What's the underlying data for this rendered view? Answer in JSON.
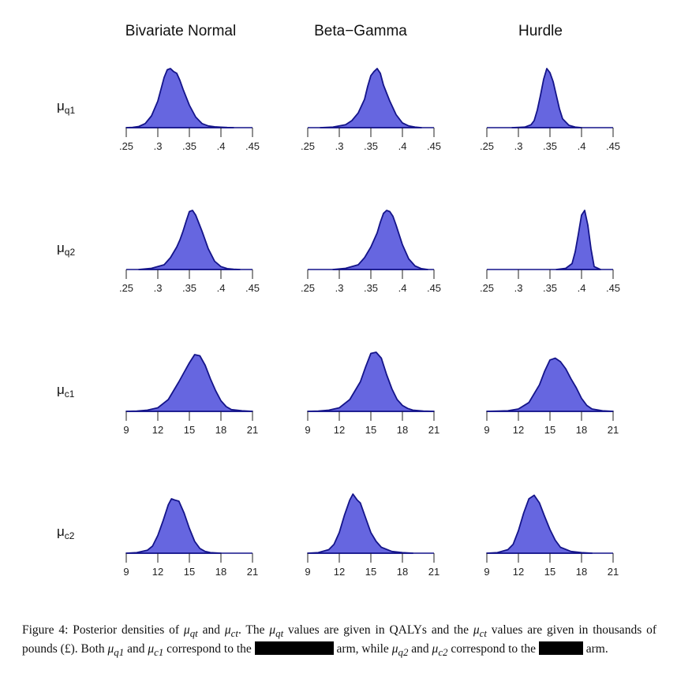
{
  "columns": [
    "Bivariate Normal",
    "Beta−Gamma",
    "Hurdle"
  ],
  "rows": [
    {
      "label": "μ",
      "sub": "q1",
      "ticks": [
        ".25",
        ".3",
        ".35",
        ".4",
        ".45"
      ]
    },
    {
      "label": "μ",
      "sub": "q2",
      "ticks": [
        ".25",
        ".3",
        ".35",
        ".4",
        ".45"
      ]
    },
    {
      "label": "μ",
      "sub": "c1",
      "ticks": [
        "9",
        "12",
        "15",
        "18",
        "21"
      ]
    },
    {
      "label": "μ",
      "sub": "c2",
      "ticks": [
        "9",
        "12",
        "15",
        "18",
        "21"
      ]
    }
  ],
  "colors": {
    "fill": "#6666e0",
    "stroke": "#14148a",
    "axis": "#14148a"
  },
  "chart_data": [
    {
      "type": "area",
      "row": "q1",
      "column": "Bivariate Normal",
      "xlim": [
        0.25,
        0.45
      ],
      "x": [
        0.25,
        0.26,
        0.27,
        0.28,
        0.29,
        0.3,
        0.305,
        0.31,
        0.315,
        0.32,
        0.325,
        0.33,
        0.335,
        0.34,
        0.35,
        0.36,
        0.37,
        0.38,
        0.39,
        0.4,
        0.41,
        0.42
      ],
      "y": [
        0,
        0.005,
        0.02,
        0.07,
        0.2,
        0.45,
        0.65,
        0.85,
        0.98,
        1.0,
        0.95,
        0.92,
        0.8,
        0.65,
        0.38,
        0.18,
        0.07,
        0.03,
        0.015,
        0.008,
        0.002,
        0
      ]
    },
    {
      "type": "area",
      "row": "q1",
      "column": "Beta−Gamma",
      "xlim": [
        0.25,
        0.45
      ],
      "x": [
        0.27,
        0.29,
        0.31,
        0.32,
        0.33,
        0.34,
        0.345,
        0.35,
        0.355,
        0.36,
        0.365,
        0.37,
        0.38,
        0.39,
        0.4,
        0.41,
        0.42,
        0.43
      ],
      "y": [
        0,
        0.01,
        0.05,
        0.12,
        0.25,
        0.48,
        0.7,
        0.88,
        0.95,
        1.0,
        0.92,
        0.72,
        0.45,
        0.22,
        0.08,
        0.03,
        0.01,
        0
      ]
    },
    {
      "type": "area",
      "row": "q1",
      "column": "Hurdle",
      "xlim": [
        0.25,
        0.45
      ],
      "x": [
        0.29,
        0.31,
        0.32,
        0.325,
        0.33,
        0.335,
        0.34,
        0.345,
        0.35,
        0.355,
        0.36,
        0.365,
        0.37,
        0.38,
        0.39,
        0.4
      ],
      "y": [
        0,
        0.01,
        0.05,
        0.12,
        0.3,
        0.55,
        0.82,
        1.0,
        0.93,
        0.78,
        0.55,
        0.32,
        0.15,
        0.04,
        0.01,
        0
      ]
    },
    {
      "type": "area",
      "row": "q2",
      "column": "Bivariate Normal",
      "xlim": [
        0.25,
        0.45
      ],
      "x": [
        0.27,
        0.29,
        0.31,
        0.32,
        0.33,
        0.335,
        0.34,
        0.345,
        0.35,
        0.355,
        0.36,
        0.37,
        0.38,
        0.39,
        0.4,
        0.41,
        0.42,
        0.43
      ],
      "y": [
        0,
        0.02,
        0.08,
        0.2,
        0.38,
        0.5,
        0.65,
        0.82,
        0.98,
        1.0,
        0.92,
        0.65,
        0.35,
        0.14,
        0.05,
        0.015,
        0.005,
        0
      ]
    },
    {
      "type": "area",
      "row": "q2",
      "column": "Beta−Gamma",
      "xlim": [
        0.25,
        0.45
      ],
      "x": [
        0.29,
        0.31,
        0.33,
        0.34,
        0.35,
        0.36,
        0.365,
        0.37,
        0.375,
        0.38,
        0.385,
        0.39,
        0.4,
        0.41,
        0.42,
        0.43,
        0.44
      ],
      "y": [
        0,
        0.02,
        0.08,
        0.2,
        0.38,
        0.62,
        0.8,
        0.95,
        1.0,
        0.98,
        0.9,
        0.75,
        0.42,
        0.18,
        0.06,
        0.015,
        0
      ]
    },
    {
      "type": "area",
      "row": "q2",
      "column": "Hurdle",
      "xlim": [
        0.25,
        0.45
      ],
      "x": [
        0.36,
        0.375,
        0.385,
        0.39,
        0.395,
        0.4,
        0.405,
        0.41,
        0.415,
        0.42,
        0.43
      ],
      "y": [
        0,
        0.02,
        0.1,
        0.3,
        0.6,
        0.92,
        1.0,
        0.75,
        0.35,
        0.05,
        0
      ]
    },
    {
      "type": "area",
      "row": "c1",
      "column": "Bivariate Normal",
      "xlim": [
        9,
        21
      ],
      "x": [
        9,
        10,
        11,
        12,
        13,
        14,
        14.5,
        15,
        15.5,
        16,
        16.5,
        17,
        17.5,
        18,
        18.5,
        19,
        20,
        21
      ],
      "y": [
        0,
        0.005,
        0.02,
        0.06,
        0.2,
        0.5,
        0.66,
        0.82,
        0.96,
        0.94,
        0.78,
        0.55,
        0.35,
        0.18,
        0.08,
        0.03,
        0.01,
        0
      ]
    },
    {
      "type": "area",
      "row": "c1",
      "column": "Beta−Gamma",
      "xlim": [
        9,
        21
      ],
      "x": [
        9,
        10,
        11,
        12,
        13,
        14,
        14.5,
        15,
        15.5,
        16,
        16.5,
        17,
        17.5,
        18,
        18.5,
        19,
        20,
        21
      ],
      "y": [
        0,
        0.005,
        0.02,
        0.06,
        0.2,
        0.5,
        0.75,
        0.98,
        1.0,
        0.9,
        0.62,
        0.38,
        0.2,
        0.1,
        0.05,
        0.02,
        0.005,
        0
      ]
    },
    {
      "type": "area",
      "row": "c1",
      "column": "Hurdle",
      "xlim": [
        9,
        21
      ],
      "x": [
        9,
        11,
        12,
        13,
        14,
        14.5,
        15,
        15.5,
        16,
        16.5,
        17,
        17.5,
        18,
        18.5,
        19,
        20,
        21
      ],
      "y": [
        0,
        0.01,
        0.04,
        0.15,
        0.45,
        0.68,
        0.87,
        0.9,
        0.84,
        0.72,
        0.55,
        0.4,
        0.22,
        0.1,
        0.04,
        0.01,
        0
      ]
    },
    {
      "type": "area",
      "row": "c2",
      "column": "Bivariate Normal",
      "xlim": [
        9,
        21
      ],
      "x": [
        9,
        10,
        11,
        11.5,
        12,
        12.5,
        13,
        13.3,
        13.6,
        14,
        14.5,
        15,
        15.5,
        16,
        16.5,
        17,
        18
      ],
      "y": [
        0,
        0.01,
        0.05,
        0.12,
        0.3,
        0.55,
        0.82,
        0.92,
        0.9,
        0.88,
        0.68,
        0.42,
        0.2,
        0.08,
        0.03,
        0.01,
        0
      ]
    },
    {
      "type": "area",
      "row": "c2",
      "column": "Beta−Gamma",
      "xlim": [
        9,
        21
      ],
      "x": [
        9,
        10,
        11,
        11.5,
        12,
        12.5,
        13,
        13.3,
        13.7,
        14,
        14.5,
        15,
        15.5,
        16,
        17,
        18,
        19
      ],
      "y": [
        0,
        0.01,
        0.06,
        0.15,
        0.35,
        0.65,
        0.9,
        1.0,
        0.9,
        0.85,
        0.6,
        0.35,
        0.2,
        0.1,
        0.03,
        0.01,
        0
      ]
    },
    {
      "type": "area",
      "row": "c2",
      "column": "Hurdle",
      "xlim": [
        9,
        21
      ],
      "x": [
        9,
        10,
        11,
        11.5,
        12,
        12.5,
        13,
        13.5,
        14,
        14.5,
        15,
        15.5,
        16,
        17,
        18,
        19
      ],
      "y": [
        0,
        0.01,
        0.06,
        0.15,
        0.38,
        0.68,
        0.92,
        0.98,
        0.85,
        0.62,
        0.4,
        0.22,
        0.1,
        0.03,
        0.01,
        0
      ]
    }
  ],
  "caption": {
    "t1": "Figure 4: Posterior densities of ",
    "m1": "μ",
    "s1": "qt",
    "t2": " and ",
    "m2": "μ",
    "s2": "ct",
    "t3": ". The ",
    "m3": "μ",
    "s3": "qt",
    "t4": " values are given in QALYs and the ",
    "m4": "μ",
    "s4": "ct",
    "t5": " values are given in thousands of pounds (£). Both ",
    "m5": "μ",
    "s5": "q1",
    "t6": " and ",
    "m6": "μ",
    "s6": "c1",
    "t7": " correspond to the ",
    "t8": " arm, while ",
    "m7": "μ",
    "s7": "q2",
    "t9": " and ",
    "m8": "μ",
    "s8": "c2",
    "t10": " correspond to the ",
    "t11": " arm."
  }
}
